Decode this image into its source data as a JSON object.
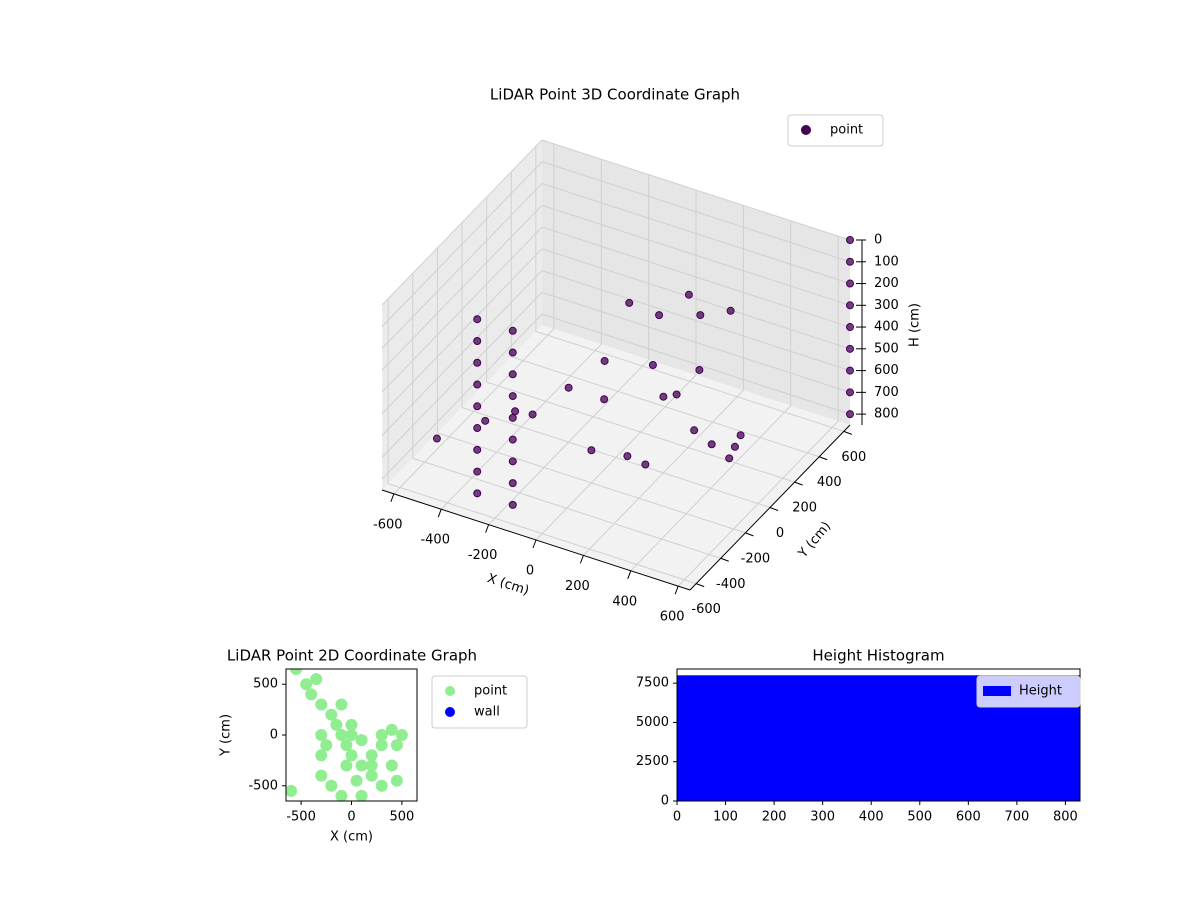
{
  "chart_data": [
    {
      "type": "scatter3d",
      "title": "LiDAR Point 3D Coordinate Graph",
      "xlabel": "X (cm)",
      "ylabel": "Y (cm)",
      "zlabel": "H (cm)",
      "xlim": [
        -650,
        650
      ],
      "ylim": [
        -650,
        650
      ],
      "zlim": [
        0,
        850
      ],
      "z_inverted": true,
      "xticks": [
        -600,
        -400,
        -200,
        0,
        200,
        400,
        600
      ],
      "yticks": [
        -600,
        -400,
        -200,
        0,
        200,
        400,
        600
      ],
      "zticks": [
        0,
        100,
        200,
        300,
        400,
        500,
        600,
        700,
        800
      ],
      "legend": "upper right",
      "series": [
        {
          "name": "point",
          "color": "#440154",
          "x": [
            -300,
            -300,
            -300,
            -300,
            -300,
            -300,
            -300,
            -300,
            -300,
            -150,
            -150,
            -150,
            -150,
            -150,
            -150,
            -150,
            -150,
            -150,
            650,
            650,
            650,
            650,
            650,
            650,
            650,
            650,
            650,
            0,
            100,
            200,
            300,
            400,
            450,
            500,
            -100,
            -200,
            -300,
            -400,
            -500,
            -600,
            0,
            100,
            200,
            300,
            200,
            100,
            0,
            -100,
            250,
            -50,
            150
          ],
          "y": [
            -550,
            -550,
            -550,
            -550,
            -550,
            -550,
            -550,
            -550,
            -550,
            -550,
            -550,
            -550,
            -550,
            -550,
            -550,
            -550,
            -550,
            -550,
            650,
            650,
            650,
            650,
            650,
            650,
            650,
            650,
            650,
            300,
            300,
            250,
            200,
            150,
            100,
            50,
            100,
            0,
            -100,
            -50,
            -100,
            -300,
            -200,
            -100,
            0,
            100,
            300,
            400,
            350,
            300,
            450,
            0,
            -50
          ],
          "z": [
            0,
            100,
            200,
            300,
            400,
            500,
            600,
            700,
            800,
            0,
            100,
            200,
            300,
            400,
            500,
            600,
            700,
            800,
            0,
            100,
            200,
            300,
            400,
            500,
            600,
            700,
            800,
            600,
            700,
            800,
            800,
            800,
            700,
            600,
            500,
            600,
            700,
            750,
            800,
            800,
            700,
            750,
            500,
            400,
            300,
            300,
            400,
            350,
            350,
            600,
            800
          ]
        }
      ]
    },
    {
      "type": "scatter",
      "title": "LiDAR Point 2D Coordinate Graph",
      "xlabel": "X (cm)",
      "ylabel": "Y (cm)",
      "xlim": [
        -650,
        650
      ],
      "ylim": [
        -650,
        650
      ],
      "xticks": [
        -500,
        0,
        500
      ],
      "yticks": [
        -500,
        0,
        500
      ],
      "legend": "outside right",
      "series": [
        {
          "name": "point",
          "color": "#90ee90",
          "x": [
            -600,
            -550,
            -450,
            -400,
            -300,
            -200,
            -150,
            -100,
            -50,
            0,
            100,
            200,
            300,
            400,
            450,
            500,
            400,
            300,
            200,
            100,
            0,
            -300,
            -300,
            -300,
            -200,
            -100,
            100,
            200,
            -100,
            -250,
            450,
            50,
            -50,
            300,
            0,
            -350
          ],
          "y": [
            -550,
            650,
            500,
            400,
            300,
            200,
            100,
            0,
            -100,
            -200,
            -300,
            -400,
            -500,
            -300,
            -100,
            0,
            50,
            -100,
            -200,
            -50,
            100,
            0,
            -200,
            -400,
            -500,
            -600,
            -600,
            -300,
            300,
            -100,
            -450,
            -450,
            -300,
            0,
            0,
            550
          ]
        },
        {
          "name": "wall",
          "color": "#0000ff",
          "x": [],
          "y": []
        }
      ]
    },
    {
      "type": "histogram",
      "title": "Height Histogram",
      "bins": [
        0,
        830
      ],
      "xlim": [
        0,
        830
      ],
      "ylim": [
        0,
        8400
      ],
      "xticks": [
        0,
        100,
        200,
        300,
        400,
        500,
        600,
        700,
        800
      ],
      "yticks": [
        0,
        2500,
        5000,
        7500
      ],
      "legend": "upper right",
      "series": [
        {
          "name": "Height",
          "color": "#0000ff",
          "values": [
            8000
          ]
        }
      ]
    }
  ]
}
